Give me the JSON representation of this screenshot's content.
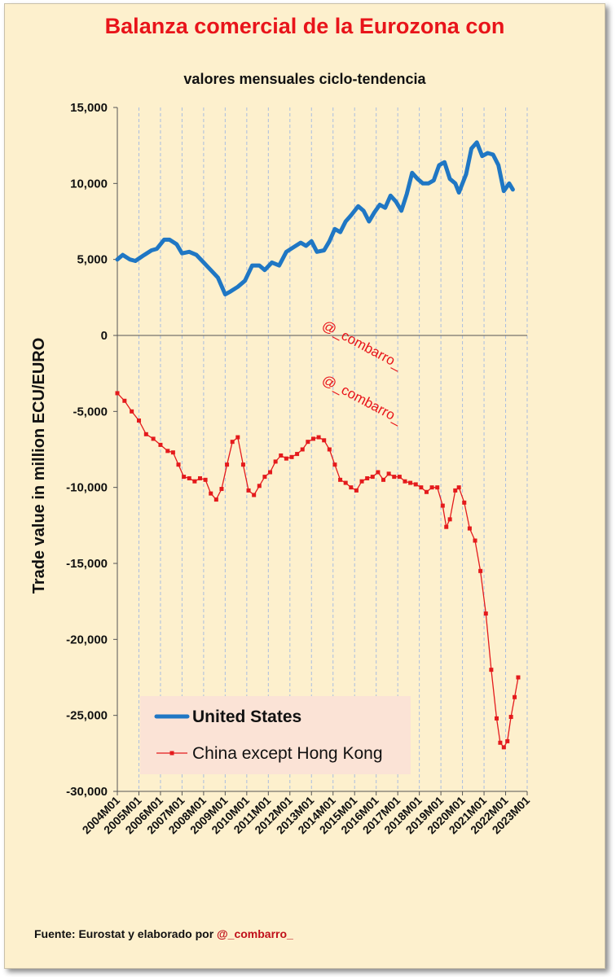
{
  "chart_data": {
    "type": "line",
    "title": "Balanza comercial de la Eurozona con",
    "subtitle": "valores mensuales ciclo-tendencia",
    "xlabel": "",
    "ylabel": "Trade value in million ECU/EURO",
    "ylim": [
      -30000,
      15000
    ],
    "y_ticks": [
      15000,
      10000,
      5000,
      0,
      -5000,
      -10000,
      -15000,
      -20000,
      -25000,
      -30000
    ],
    "y_tick_labels": [
      "15,000",
      "10,000",
      "5,000",
      "0",
      "-5,000",
      "-10,000",
      "-15,000",
      "-20,000",
      "-25,000",
      "-30,000"
    ],
    "x_tick_labels": [
      "2004M01",
      "2005M01",
      "2006M01",
      "2007M01",
      "2008M01",
      "2009M01",
      "2010M01",
      "2011M01",
      "2012M01",
      "2013M01",
      "2014M01",
      "2015M01",
      "2016M01",
      "2017M01",
      "2018M01",
      "2019M01",
      "2020M01",
      "2021M01",
      "2022M01",
      "2023M01"
    ],
    "x_range": [
      "2004M01",
      "2023M01"
    ],
    "grid": "vertical dashed",
    "legend_position": "bottom-left",
    "annotations": [
      "@_combarro_",
      "@_combarro_"
    ],
    "source_text": "Fuente: Eurostat y elaborado por ",
    "source_handle": "@_combarro_",
    "series": [
      {
        "name": "United States",
        "color": "#1f77c4",
        "marker": "none",
        "points": [
          [
            "2004M01",
            5000
          ],
          [
            "2004M04",
            5300
          ],
          [
            "2004M08",
            5000
          ],
          [
            "2004M11",
            4900
          ],
          [
            "2005M04",
            5300
          ],
          [
            "2005M08",
            5600
          ],
          [
            "2005M11",
            5700
          ],
          [
            "2006M03",
            6300
          ],
          [
            "2006M06",
            6300
          ],
          [
            "2006M10",
            6000
          ],
          [
            "2007M01",
            5400
          ],
          [
            "2007M05",
            5500
          ],
          [
            "2007M09",
            5300
          ],
          [
            "2008M01",
            4800
          ],
          [
            "2008M05",
            4300
          ],
          [
            "2008M09",
            3800
          ],
          [
            "2009M01",
            2700
          ],
          [
            "2009M04",
            2900
          ],
          [
            "2009M08",
            3200
          ],
          [
            "2009M12",
            3600
          ],
          [
            "2010M04",
            4600
          ],
          [
            "2010M08",
            4600
          ],
          [
            "2010M11",
            4300
          ],
          [
            "2011M03",
            4800
          ],
          [
            "2011M07",
            4600
          ],
          [
            "2011M11",
            5500
          ],
          [
            "2012M03",
            5800
          ],
          [
            "2012M07",
            6100
          ],
          [
            "2012M10",
            5900
          ],
          [
            "2013M01",
            6200
          ],
          [
            "2013M04",
            5500
          ],
          [
            "2013M08",
            5600
          ],
          [
            "2013M11",
            6200
          ],
          [
            "2014M02",
            7000
          ],
          [
            "2014M05",
            6800
          ],
          [
            "2014M08",
            7500
          ],
          [
            "2014M11",
            7900
          ],
          [
            "2015M03",
            8500
          ],
          [
            "2015M06",
            8200
          ],
          [
            "2015M09",
            7500
          ],
          [
            "2015M12",
            8100
          ],
          [
            "2016M03",
            8600
          ],
          [
            "2016M06",
            8400
          ],
          [
            "2016M09",
            9200
          ],
          [
            "2016M12",
            8800
          ],
          [
            "2017M03",
            8200
          ],
          [
            "2017M06",
            9300
          ],
          [
            "2017M09",
            10700
          ],
          [
            "2017M12",
            10300
          ],
          [
            "2018M03",
            10000
          ],
          [
            "2018M06",
            10000
          ],
          [
            "2018M09",
            10200
          ],
          [
            "2018M12",
            11200
          ],
          [
            "2019M03",
            11400
          ],
          [
            "2019M06",
            10300
          ],
          [
            "2019M09",
            10000
          ],
          [
            "2019M11",
            9400
          ],
          [
            "2020M03",
            10600
          ],
          [
            "2020M06",
            12300
          ],
          [
            "2020M09",
            12700
          ],
          [
            "2020M12",
            11800
          ],
          [
            "2021M03",
            12000
          ],
          [
            "2021M06",
            11900
          ],
          [
            "2021M09",
            11200
          ],
          [
            "2021M12",
            9500
          ],
          [
            "2022M03",
            10000
          ],
          [
            "2022M05",
            9600
          ]
        ]
      },
      {
        "name": "China except Hong Kong",
        "color": "#e41a1c",
        "marker": "square",
        "points": [
          [
            "2004M01",
            -3800
          ],
          [
            "2004M05",
            -4300
          ],
          [
            "2004M09",
            -5000
          ],
          [
            "2005M01",
            -5600
          ],
          [
            "2005M05",
            -6500
          ],
          [
            "2005M09",
            -6800
          ],
          [
            "2006M01",
            -7200
          ],
          [
            "2006M05",
            -7600
          ],
          [
            "2006M08",
            -7700
          ],
          [
            "2006M11",
            -8500
          ],
          [
            "2007M02",
            -9300
          ],
          [
            "2007M05",
            -9400
          ],
          [
            "2007M08",
            -9600
          ],
          [
            "2007M11",
            -9400
          ],
          [
            "2008M02",
            -9500
          ],
          [
            "2008M05",
            -10400
          ],
          [
            "2008M08",
            -10800
          ],
          [
            "2008M11",
            -10100
          ],
          [
            "2009M02",
            -8500
          ],
          [
            "2009M05",
            -7000
          ],
          [
            "2009M08",
            -6700
          ],
          [
            "2009M11",
            -8500
          ],
          [
            "2010M02",
            -10200
          ],
          [
            "2010M05",
            -10500
          ],
          [
            "2010M08",
            -9900
          ],
          [
            "2010M11",
            -9300
          ],
          [
            "2011M02",
            -9000
          ],
          [
            "2011M05",
            -8300
          ],
          [
            "2011M08",
            -7900
          ],
          [
            "2011M11",
            -8100
          ],
          [
            "2012M02",
            -8000
          ],
          [
            "2012M05",
            -7800
          ],
          [
            "2012M08",
            -7500
          ],
          [
            "2012M11",
            -7000
          ],
          [
            "2013M02",
            -6800
          ],
          [
            "2013M05",
            -6700
          ],
          [
            "2013M08",
            -6900
          ],
          [
            "2013M11",
            -7500
          ],
          [
            "2014M02",
            -8500
          ],
          [
            "2014M05",
            -9500
          ],
          [
            "2014M08",
            -9700
          ],
          [
            "2014M11",
            -10000
          ],
          [
            "2015M02",
            -10200
          ],
          [
            "2015M05",
            -9600
          ],
          [
            "2015M08",
            -9400
          ],
          [
            "2015M11",
            -9300
          ],
          [
            "2016M02",
            -9000
          ],
          [
            "2016M05",
            -9500
          ],
          [
            "2016M08",
            -9100
          ],
          [
            "2016M11",
            -9300
          ],
          [
            "2017M02",
            -9300
          ],
          [
            "2017M05",
            -9600
          ],
          [
            "2017M08",
            -9700
          ],
          [
            "2017M11",
            -9800
          ],
          [
            "2018M02",
            -10000
          ],
          [
            "2018M05",
            -10300
          ],
          [
            "2018M08",
            -10000
          ],
          [
            "2018M11",
            -10000
          ],
          [
            "2019M02",
            -11200
          ],
          [
            "2019M04",
            -12600
          ],
          [
            "2019M06",
            -12100
          ],
          [
            "2019M09",
            -10200
          ],
          [
            "2019M11",
            -10000
          ],
          [
            "2020M02",
            -11000
          ],
          [
            "2020M05",
            -12700
          ],
          [
            "2020M08",
            -13500
          ],
          [
            "2020M11",
            -15500
          ],
          [
            "2021M02",
            -18300
          ],
          [
            "2021M05",
            -22000
          ],
          [
            "2021M08",
            -25200
          ],
          [
            "2021M10",
            -26800
          ],
          [
            "2021M12",
            -27100
          ],
          [
            "2022M02",
            -26700
          ],
          [
            "2022M04",
            -25100
          ],
          [
            "2022M06",
            -23800
          ],
          [
            "2022M08",
            -22500
          ]
        ]
      }
    ]
  }
}
